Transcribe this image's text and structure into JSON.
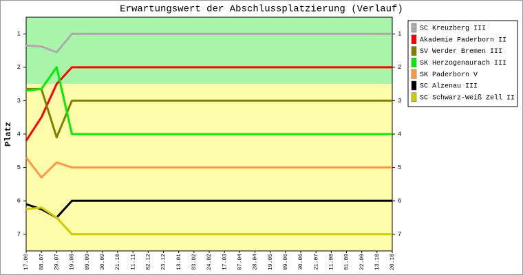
{
  "chart_data": {
    "type": "line",
    "title": "Erwartungswert der Abschlussplatzierung (Verlauf)",
    "y_label": "Platz",
    "categories": [
      "17.06",
      "08.07",
      "29.07",
      "19.08",
      "09.09",
      "30.09",
      "21.10",
      "11.11",
      "02.12",
      "23.12",
      "13.01",
      "03.02",
      "24.02",
      "17.03",
      "07.04",
      "28.04",
      "19.05",
      "09.06",
      "30.06",
      "21.07",
      "11.08",
      "01.09",
      "22.09",
      "13.10",
      "20.10"
    ],
    "ylim": [
      7.5,
      0.5
    ],
    "yticks": [
      1,
      2,
      3,
      4,
      5,
      6,
      7
    ],
    "bands": [
      {
        "from": 0.5,
        "to": 2.5,
        "color": "#aaf5aa"
      },
      {
        "from": 2.5,
        "to": 7.5,
        "color": "#fcfcaa"
      }
    ],
    "series": [
      {
        "name": "SC Kreuzberg III",
        "color": "#aaaaaa",
        "values": [
          1.35,
          1.38,
          1.55,
          1,
          1,
          1,
          1,
          1,
          1,
          1,
          1,
          1,
          1,
          1,
          1,
          1,
          1,
          1,
          1,
          1,
          1,
          1,
          1,
          1,
          1
        ]
      },
      {
        "name": "Akademie Paderborn II",
        "color": "#ff0000",
        "values": [
          4.2,
          3.5,
          2.5,
          2,
          2,
          2,
          2,
          2,
          2,
          2,
          2,
          2,
          2,
          2,
          2,
          2,
          2,
          2,
          2,
          2,
          2,
          2,
          2,
          2,
          2
        ]
      },
      {
        "name": "SV Werder Bremen III",
        "color": "#808000",
        "values": [
          2.65,
          2.65,
          4.1,
          3,
          3,
          3,
          3,
          3,
          3,
          3,
          3,
          3,
          3,
          3,
          3,
          3,
          3,
          3,
          3,
          3,
          3,
          3,
          3,
          3,
          3
        ]
      },
      {
        "name": "SK Herzogenaurach III",
        "color": "#00ee00",
        "values": [
          2.7,
          2.65,
          2,
          4,
          4,
          4,
          4,
          4,
          4,
          4,
          4,
          4,
          4,
          4,
          4,
          4,
          4,
          4,
          4,
          4,
          4,
          4,
          4,
          4,
          4
        ]
      },
      {
        "name": "SK Paderborn V",
        "color": "#ff9944",
        "values": [
          4.7,
          5.3,
          4.85,
          5,
          5,
          5,
          5,
          5,
          5,
          5,
          5,
          5,
          5,
          5,
          5,
          5,
          5,
          5,
          5,
          5,
          5,
          5,
          5,
          5,
          5
        ]
      },
      {
        "name": "SC Alzenau III",
        "color": "#000000",
        "values": [
          6.1,
          6.25,
          6.5,
          6,
          6,
          6,
          6,
          6,
          6,
          6,
          6,
          6,
          6,
          6,
          6,
          6,
          6,
          6,
          6,
          6,
          6,
          6,
          6,
          6,
          6
        ]
      },
      {
        "name": "SC Schwarz-Weiß Zell II",
        "color": "#cccc00",
        "values": [
          6.25,
          6.2,
          6.5,
          7,
          7,
          7,
          7,
          7,
          7,
          7,
          7,
          7,
          7,
          7,
          7,
          7,
          7,
          7,
          7,
          7,
          7,
          7,
          7,
          7,
          7
        ]
      }
    ]
  }
}
